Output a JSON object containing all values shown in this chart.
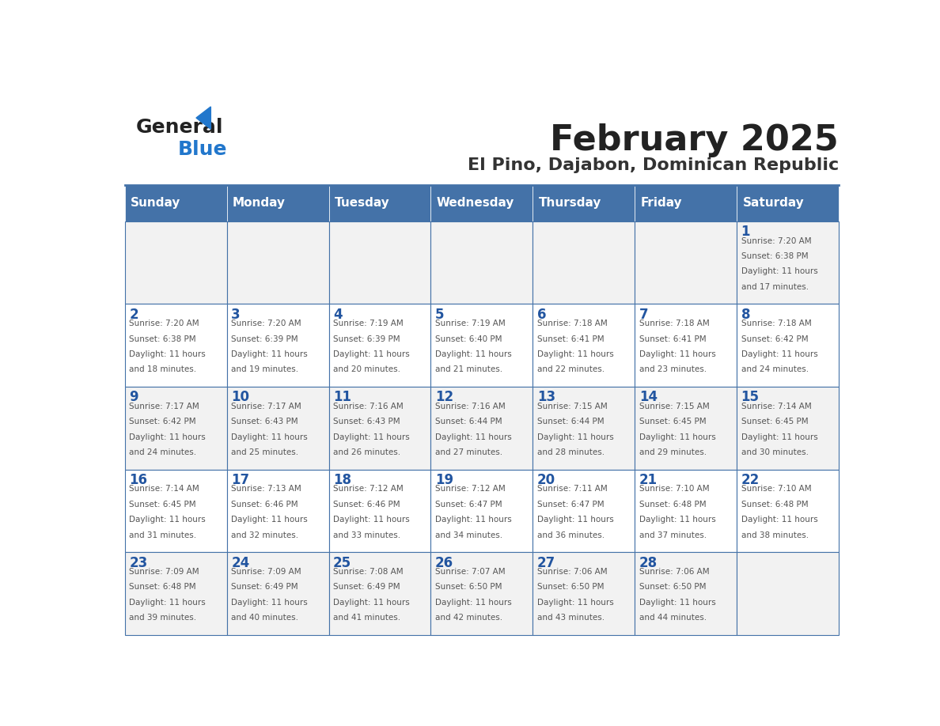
{
  "title": "February 2025",
  "subtitle": "El Pino, Dajabon, Dominican Republic",
  "days_of_week": [
    "Sunday",
    "Monday",
    "Tuesday",
    "Wednesday",
    "Thursday",
    "Friday",
    "Saturday"
  ],
  "header_bg": "#4472a8",
  "header_text": "#ffffff",
  "cell_bg_odd": "#f2f2f2",
  "cell_bg_even": "#ffffff",
  "day_number_color": "#2255a0",
  "text_color": "#555555",
  "border_color": "#4472a8",
  "title_color": "#222222",
  "subtitle_color": "#333333",
  "logo_general_color": "#222222",
  "logo_blue_color": "#2277cc",
  "calendar_data": [
    [
      null,
      null,
      null,
      null,
      null,
      null,
      1
    ],
    [
      2,
      3,
      4,
      5,
      6,
      7,
      8
    ],
    [
      9,
      10,
      11,
      12,
      13,
      14,
      15
    ],
    [
      16,
      17,
      18,
      19,
      20,
      21,
      22
    ],
    [
      23,
      24,
      25,
      26,
      27,
      28,
      null
    ]
  ],
  "sunrise_data": {
    "1": "7:20 AM",
    "2": "7:20 AM",
    "3": "7:20 AM",
    "4": "7:19 AM",
    "5": "7:19 AM",
    "6": "7:18 AM",
    "7": "7:18 AM",
    "8": "7:18 AM",
    "9": "7:17 AM",
    "10": "7:17 AM",
    "11": "7:16 AM",
    "12": "7:16 AM",
    "13": "7:15 AM",
    "14": "7:15 AM",
    "15": "7:14 AM",
    "16": "7:14 AM",
    "17": "7:13 AM",
    "18": "7:12 AM",
    "19": "7:12 AM",
    "20": "7:11 AM",
    "21": "7:10 AM",
    "22": "7:10 AM",
    "23": "7:09 AM",
    "24": "7:09 AM",
    "25": "7:08 AM",
    "26": "7:07 AM",
    "27": "7:06 AM",
    "28": "7:06 AM"
  },
  "sunset_data": {
    "1": "6:38 PM",
    "2": "6:38 PM",
    "3": "6:39 PM",
    "4": "6:39 PM",
    "5": "6:40 PM",
    "6": "6:41 PM",
    "7": "6:41 PM",
    "8": "6:42 PM",
    "9": "6:42 PM",
    "10": "6:43 PM",
    "11": "6:43 PM",
    "12": "6:44 PM",
    "13": "6:44 PM",
    "14": "6:45 PM",
    "15": "6:45 PM",
    "16": "6:45 PM",
    "17": "6:46 PM",
    "18": "6:46 PM",
    "19": "6:47 PM",
    "20": "6:47 PM",
    "21": "6:48 PM",
    "22": "6:48 PM",
    "23": "6:48 PM",
    "24": "6:49 PM",
    "25": "6:49 PM",
    "26": "6:50 PM",
    "27": "6:50 PM",
    "28": "6:50 PM"
  },
  "daylight_data": {
    "1": "11 hours\nand 17 minutes.",
    "2": "11 hours\nand 18 minutes.",
    "3": "11 hours\nand 19 minutes.",
    "4": "11 hours\nand 20 minutes.",
    "5": "11 hours\nand 21 minutes.",
    "6": "11 hours\nand 22 minutes.",
    "7": "11 hours\nand 23 minutes.",
    "8": "11 hours\nand 24 minutes.",
    "9": "11 hours\nand 24 minutes.",
    "10": "11 hours\nand 25 minutes.",
    "11": "11 hours\nand 26 minutes.",
    "12": "11 hours\nand 27 minutes.",
    "13": "11 hours\nand 28 minutes.",
    "14": "11 hours\nand 29 minutes.",
    "15": "11 hours\nand 30 minutes.",
    "16": "11 hours\nand 31 minutes.",
    "17": "11 hours\nand 32 minutes.",
    "18": "11 hours\nand 33 minutes.",
    "19": "11 hours\nand 34 minutes.",
    "20": "11 hours\nand 36 minutes.",
    "21": "11 hours\nand 37 minutes.",
    "22": "11 hours\nand 38 minutes.",
    "23": "11 hours\nand 39 minutes.",
    "24": "11 hours\nand 40 minutes.",
    "25": "11 hours\nand 41 minutes.",
    "26": "11 hours\nand 42 minutes.",
    "27": "11 hours\nand 43 minutes.",
    "28": "11 hours\nand 44 minutes."
  }
}
